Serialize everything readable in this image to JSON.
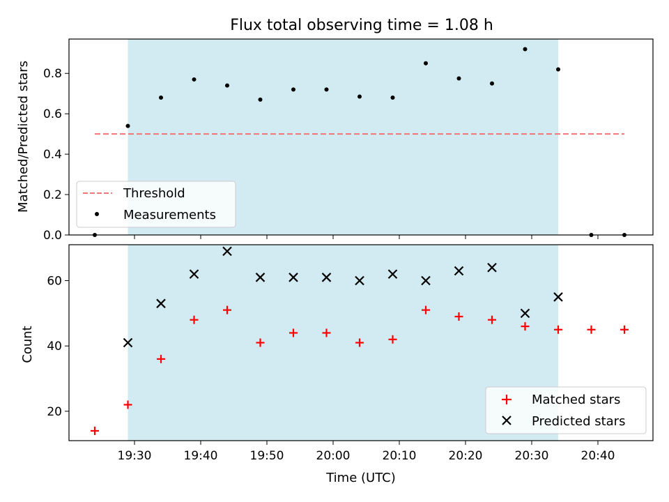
{
  "title": "Flux total observing time = 1.08 h",
  "colors": {
    "shade": "#add8e6",
    "threshold": "#f27474",
    "matched": "#ff0000",
    "predicted": "#000000",
    "measure": "#000000"
  },
  "chart_data": [
    {
      "type": "scatter",
      "ylabel": "Matched/Predicted stars",
      "ylim": [
        0.0,
        0.97
      ],
      "yticks": [
        "0.0",
        "0.2",
        "0.4",
        "0.6",
        "0.8"
      ],
      "threshold": {
        "value": 0.5,
        "x_start": "19:24",
        "x_end": "20:44"
      },
      "observing_window": {
        "start": "19:29",
        "end": "20:34"
      },
      "legend_position": "lower-left",
      "legend": [
        "Threshold",
        "Measurements"
      ],
      "series": [
        {
          "name": "Measurements",
          "x": [
            "19:24",
            "19:29",
            "19:34",
            "19:39",
            "19:44",
            "19:49",
            "19:54",
            "19:59",
            "20:04",
            "20:09",
            "20:14",
            "20:19",
            "20:24",
            "20:29",
            "20:34",
            "20:39",
            "20:44"
          ],
          "values": [
            0.0,
            0.54,
            0.68,
            0.77,
            0.74,
            0.67,
            0.72,
            0.72,
            0.685,
            0.68,
            0.85,
            0.775,
            0.75,
            0.92,
            0.82,
            0.0,
            0.0
          ]
        }
      ]
    },
    {
      "type": "scatter",
      "xlabel": "Time (UTC)",
      "ylabel": "Count",
      "ylim": [
        11,
        71
      ],
      "yticks": [
        "20",
        "40",
        "60"
      ],
      "xticks": [
        "19:30",
        "19:40",
        "19:50",
        "20:00",
        "20:10",
        "20:20",
        "20:30",
        "20:40"
      ],
      "legend_position": "lower-right",
      "legend": [
        "Matched stars",
        "Predicted stars"
      ],
      "series": [
        {
          "name": "Matched stars",
          "x": [
            "19:24",
            "19:29",
            "19:34",
            "19:39",
            "19:44",
            "19:49",
            "19:54",
            "19:59",
            "20:04",
            "20:09",
            "20:14",
            "20:19",
            "20:24",
            "20:29",
            "20:34",
            "20:39",
            "20:44"
          ],
          "values": [
            14,
            22,
            36,
            48,
            51,
            41,
            44,
            44,
            41,
            42,
            51,
            49,
            48,
            46,
            45,
            45,
            45
          ]
        },
        {
          "name": "Predicted stars",
          "x": [
            "19:29",
            "19:34",
            "19:39",
            "19:44",
            "19:49",
            "19:54",
            "19:59",
            "20:04",
            "20:09",
            "20:14",
            "20:19",
            "20:24",
            "20:29",
            "20:34"
          ],
          "values": [
            41,
            53,
            62,
            69,
            61,
            61,
            61,
            60,
            62,
            60,
            63,
            64,
            50,
            55
          ]
        }
      ]
    }
  ]
}
